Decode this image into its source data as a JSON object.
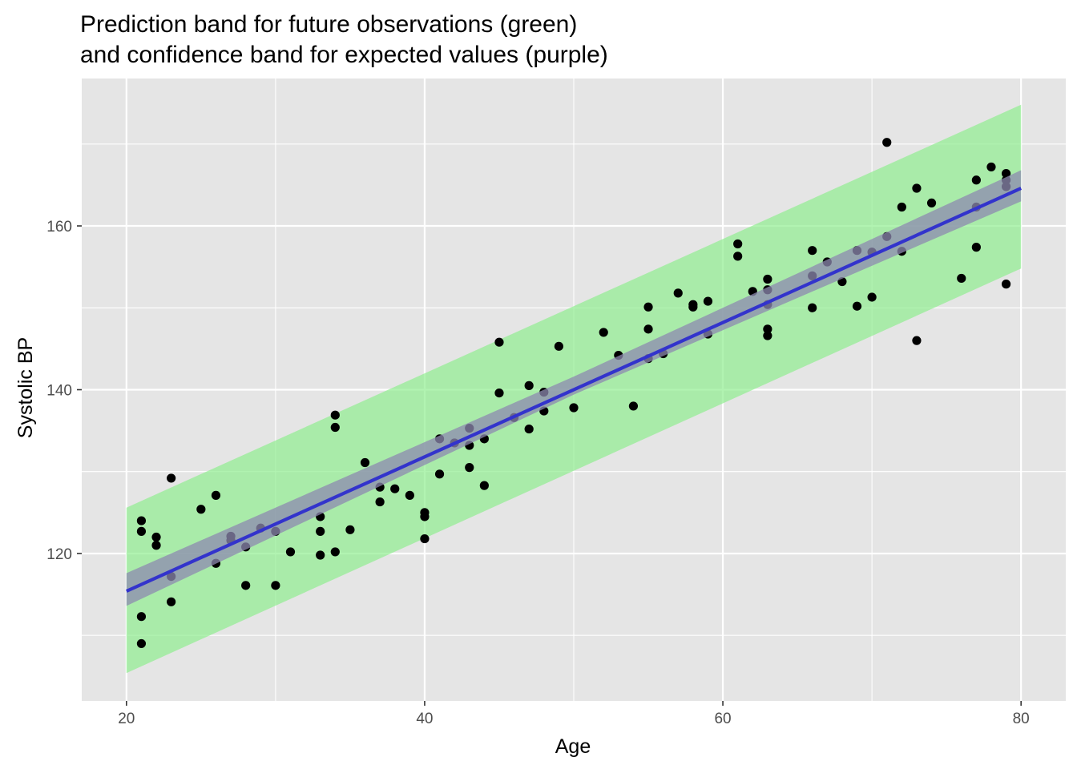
{
  "chart_data": {
    "type": "scatter",
    "title_lines": [
      "Prediction band for future observations (green)",
      "and confidence band for expected values (purple)"
    ],
    "xlabel": "Age",
    "ylabel": "Systolic BP",
    "xlim": [
      17,
      83
    ],
    "ylim": [
      102,
      178
    ],
    "x_ticks": [
      20,
      40,
      60,
      80
    ],
    "y_ticks": [
      120,
      140,
      160
    ],
    "grid": true,
    "colors": {
      "panel": "#e5e5e5",
      "grid": "#ffffff",
      "points": "#000000",
      "prediction_band": "#90ee90",
      "confidence_band": "#8e8ab0",
      "fit_line": "#3333cc"
    },
    "fit": {
      "intercept": 99.0,
      "slope": 0.82
    },
    "confidence_band": {
      "x": [
        20,
        50,
        80
      ],
      "lower": [
        113.6,
        139.4,
        163.0
      ],
      "upper": [
        117.6,
        141.6,
        166.8
      ]
    },
    "prediction_band": {
      "x": [
        20,
        80
      ],
      "lower": [
        105.4,
        154.8
      ],
      "upper": [
        125.6,
        174.8
      ]
    },
    "points": [
      {
        "x": 21,
        "y": 124.0
      },
      {
        "x": 21,
        "y": 122.7
      },
      {
        "x": 21,
        "y": 112.3
      },
      {
        "x": 21,
        "y": 109.0
      },
      {
        "x": 22,
        "y": 122.0
      },
      {
        "x": 22,
        "y": 121.0
      },
      {
        "x": 23,
        "y": 129.2
      },
      {
        "x": 23,
        "y": 117.2
      },
      {
        "x": 23,
        "y": 114.1
      },
      {
        "x": 25,
        "y": 125.4
      },
      {
        "x": 26,
        "y": 127.1
      },
      {
        "x": 26,
        "y": 118.8
      },
      {
        "x": 27,
        "y": 122.1
      },
      {
        "x": 27,
        "y": 121.6
      },
      {
        "x": 28,
        "y": 120.8
      },
      {
        "x": 28,
        "y": 116.1
      },
      {
        "x": 29,
        "y": 123.1
      },
      {
        "x": 30,
        "y": 122.7
      },
      {
        "x": 30,
        "y": 116.1
      },
      {
        "x": 31,
        "y": 120.2
      },
      {
        "x": 33,
        "y": 124.5
      },
      {
        "x": 33,
        "y": 122.7
      },
      {
        "x": 33,
        "y": 119.8
      },
      {
        "x": 34,
        "y": 136.9
      },
      {
        "x": 34,
        "y": 135.4
      },
      {
        "x": 34,
        "y": 120.2
      },
      {
        "x": 35,
        "y": 122.9
      },
      {
        "x": 36,
        "y": 131.1
      },
      {
        "x": 37,
        "y": 128.1
      },
      {
        "x": 37,
        "y": 126.3
      },
      {
        "x": 38,
        "y": 127.9
      },
      {
        "x": 39,
        "y": 127.1
      },
      {
        "x": 40,
        "y": 125.0
      },
      {
        "x": 40,
        "y": 124.5
      },
      {
        "x": 40,
        "y": 121.8
      },
      {
        "x": 41,
        "y": 134.0
      },
      {
        "x": 41,
        "y": 129.7
      },
      {
        "x": 42,
        "y": 133.5
      },
      {
        "x": 43,
        "y": 135.3
      },
      {
        "x": 43,
        "y": 133.2
      },
      {
        "x": 43,
        "y": 130.5
      },
      {
        "x": 44,
        "y": 134.0
      },
      {
        "x": 44,
        "y": 128.3
      },
      {
        "x": 45,
        "y": 145.8
      },
      {
        "x": 45,
        "y": 139.6
      },
      {
        "x": 46,
        "y": 136.6
      },
      {
        "x": 47,
        "y": 140.5
      },
      {
        "x": 47,
        "y": 135.2
      },
      {
        "x": 48,
        "y": 139.7
      },
      {
        "x": 48,
        "y": 137.4
      },
      {
        "x": 49,
        "y": 145.3
      },
      {
        "x": 50,
        "y": 137.8
      },
      {
        "x": 52,
        "y": 147.0
      },
      {
        "x": 53,
        "y": 144.2
      },
      {
        "x": 54,
        "y": 138.0
      },
      {
        "x": 55,
        "y": 150.1
      },
      {
        "x": 55,
        "y": 147.4
      },
      {
        "x": 55,
        "y": 143.8
      },
      {
        "x": 56,
        "y": 144.4
      },
      {
        "x": 57,
        "y": 151.8
      },
      {
        "x": 58,
        "y": 150.4
      },
      {
        "x": 58,
        "y": 150.1
      },
      {
        "x": 59,
        "y": 150.8
      },
      {
        "x": 59,
        "y": 146.8
      },
      {
        "x": 61,
        "y": 157.8
      },
      {
        "x": 61,
        "y": 156.3
      },
      {
        "x": 62,
        "y": 152.0
      },
      {
        "x": 63,
        "y": 153.5
      },
      {
        "x": 63,
        "y": 152.2
      },
      {
        "x": 63,
        "y": 150.4
      },
      {
        "x": 63,
        "y": 147.4
      },
      {
        "x": 63,
        "y": 146.6
      },
      {
        "x": 66,
        "y": 157.0
      },
      {
        "x": 66,
        "y": 153.9
      },
      {
        "x": 66,
        "y": 150.0
      },
      {
        "x": 67,
        "y": 155.6
      },
      {
        "x": 68,
        "y": 153.2
      },
      {
        "x": 69,
        "y": 157.0
      },
      {
        "x": 69,
        "y": 150.2
      },
      {
        "x": 70,
        "y": 156.8
      },
      {
        "x": 70,
        "y": 151.3
      },
      {
        "x": 71,
        "y": 170.2
      },
      {
        "x": 71,
        "y": 158.7
      },
      {
        "x": 72,
        "y": 162.3
      },
      {
        "x": 72,
        "y": 156.9
      },
      {
        "x": 73,
        "y": 164.6
      },
      {
        "x": 73,
        "y": 146.0
      },
      {
        "x": 74,
        "y": 162.8
      },
      {
        "x": 76,
        "y": 153.6
      },
      {
        "x": 77,
        "y": 165.6
      },
      {
        "x": 77,
        "y": 162.3
      },
      {
        "x": 77,
        "y": 157.4
      },
      {
        "x": 78,
        "y": 167.2
      },
      {
        "x": 79,
        "y": 166.4
      },
      {
        "x": 79,
        "y": 165.6
      },
      {
        "x": 79,
        "y": 164.8
      },
      {
        "x": 79,
        "y": 152.9
      }
    ]
  }
}
